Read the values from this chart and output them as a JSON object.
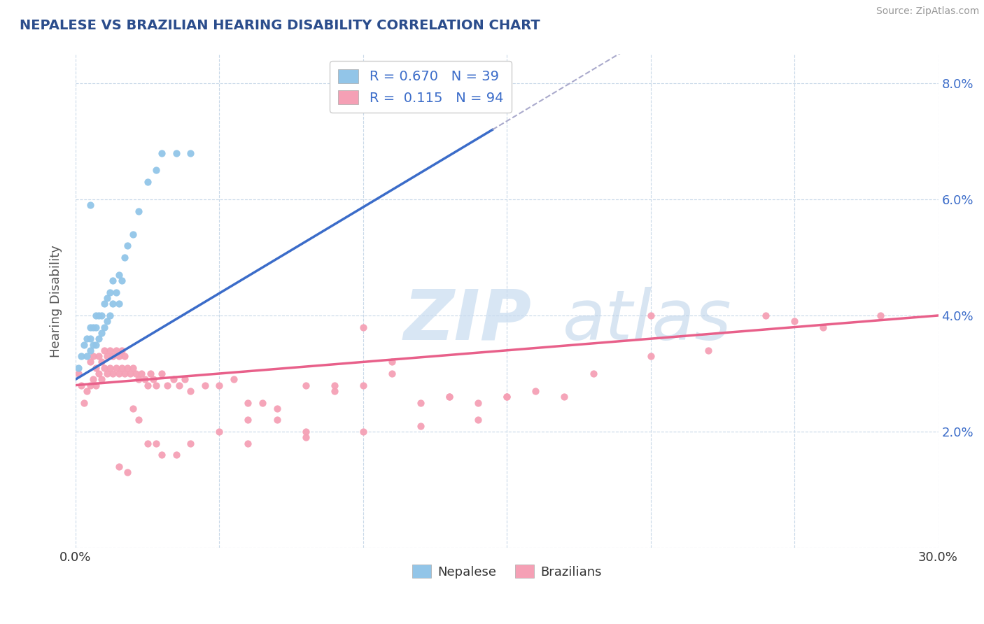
{
  "title": "NEPALESE VS BRAZILIAN HEARING DISABILITY CORRELATION CHART",
  "source": "Source: ZipAtlas.com",
  "ylabel": "Hearing Disability",
  "xlim": [
    0.0,
    0.3
  ],
  "ylim": [
    0.0,
    0.085
  ],
  "xtick_positions": [
    0.0,
    0.05,
    0.1,
    0.15,
    0.2,
    0.25,
    0.3
  ],
  "xtick_labels": [
    "0.0%",
    "",
    "",
    "",
    "",
    "",
    "30.0%"
  ],
  "ytick_positions": [
    0.0,
    0.02,
    0.04,
    0.06,
    0.08
  ],
  "ytick_labels": [
    "",
    "2.0%",
    "4.0%",
    "6.0%",
    "8.0%"
  ],
  "nepalese_R": 0.67,
  "nepalese_N": 39,
  "brazilian_R": 0.115,
  "brazilian_N": 94,
  "nepalese_color": "#92C5E8",
  "brazilian_color": "#F5A0B5",
  "nepalese_line_color": "#3B6CC9",
  "brazilian_line_color": "#E8608A",
  "legend_text_color": "#3B6CC9",
  "label_color": "#555555",
  "background_color": "#FFFFFF",
  "grid_color": "#C8D8E8",
  "nepalese_scatter_x": [
    0.001,
    0.002,
    0.003,
    0.004,
    0.004,
    0.005,
    0.005,
    0.005,
    0.006,
    0.006,
    0.007,
    0.007,
    0.007,
    0.008,
    0.008,
    0.009,
    0.009,
    0.01,
    0.01,
    0.011,
    0.011,
    0.012,
    0.012,
    0.013,
    0.013,
    0.014,
    0.015,
    0.015,
    0.016,
    0.017,
    0.018,
    0.02,
    0.022,
    0.025,
    0.028,
    0.03,
    0.035,
    0.04,
    0.005
  ],
  "nepalese_scatter_y": [
    0.031,
    0.033,
    0.035,
    0.033,
    0.036,
    0.034,
    0.036,
    0.038,
    0.035,
    0.038,
    0.035,
    0.038,
    0.04,
    0.036,
    0.04,
    0.037,
    0.04,
    0.038,
    0.042,
    0.039,
    0.043,
    0.04,
    0.044,
    0.042,
    0.046,
    0.044,
    0.042,
    0.047,
    0.046,
    0.05,
    0.052,
    0.054,
    0.058,
    0.063,
    0.065,
    0.068,
    0.068,
    0.068,
    0.059
  ],
  "brazilian_scatter_x": [
    0.001,
    0.002,
    0.003,
    0.004,
    0.005,
    0.005,
    0.006,
    0.006,
    0.007,
    0.007,
    0.008,
    0.008,
    0.009,
    0.009,
    0.01,
    0.01,
    0.011,
    0.011,
    0.012,
    0.012,
    0.013,
    0.013,
    0.014,
    0.014,
    0.015,
    0.015,
    0.016,
    0.016,
    0.017,
    0.017,
    0.018,
    0.019,
    0.02,
    0.021,
    0.022,
    0.023,
    0.024,
    0.025,
    0.026,
    0.027,
    0.028,
    0.03,
    0.032,
    0.034,
    0.036,
    0.038,
    0.04,
    0.045,
    0.05,
    0.055,
    0.06,
    0.065,
    0.07,
    0.08,
    0.09,
    0.1,
    0.11,
    0.12,
    0.13,
    0.14,
    0.15,
    0.16,
    0.17,
    0.18,
    0.2,
    0.22,
    0.24,
    0.26,
    0.28,
    0.13,
    0.05,
    0.07,
    0.09,
    0.11,
    0.06,
    0.08,
    0.1,
    0.15,
    0.12,
    0.14,
    0.06,
    0.1,
    0.08,
    0.02,
    0.025,
    0.03,
    0.035,
    0.04,
    0.015,
    0.018,
    0.022,
    0.028,
    0.2,
    0.25
  ],
  "brazilian_scatter_y": [
    0.03,
    0.028,
    0.025,
    0.027,
    0.028,
    0.032,
    0.029,
    0.033,
    0.028,
    0.031,
    0.03,
    0.033,
    0.029,
    0.032,
    0.031,
    0.034,
    0.03,
    0.033,
    0.031,
    0.034,
    0.03,
    0.033,
    0.031,
    0.034,
    0.03,
    0.033,
    0.031,
    0.034,
    0.03,
    0.033,
    0.031,
    0.03,
    0.031,
    0.03,
    0.029,
    0.03,
    0.029,
    0.028,
    0.03,
    0.029,
    0.028,
    0.03,
    0.028,
    0.029,
    0.028,
    0.029,
    0.027,
    0.028,
    0.028,
    0.029,
    0.025,
    0.025,
    0.024,
    0.028,
    0.027,
    0.028,
    0.03,
    0.025,
    0.026,
    0.025,
    0.026,
    0.027,
    0.026,
    0.03,
    0.033,
    0.034,
    0.04,
    0.038,
    0.04,
    0.026,
    0.02,
    0.022,
    0.028,
    0.032,
    0.022,
    0.019,
    0.02,
    0.026,
    0.021,
    0.022,
    0.018,
    0.038,
    0.02,
    0.024,
    0.018,
    0.016,
    0.016,
    0.018,
    0.014,
    0.013,
    0.022,
    0.018,
    0.04,
    0.039
  ],
  "nep_line_x0": 0.0,
  "nep_line_x1": 0.145,
  "nep_line_y0": 0.029,
  "nep_line_y1": 0.072,
  "bra_line_x0": 0.0,
  "bra_line_x1": 0.3,
  "bra_line_y0": 0.028,
  "bra_line_y1": 0.04
}
